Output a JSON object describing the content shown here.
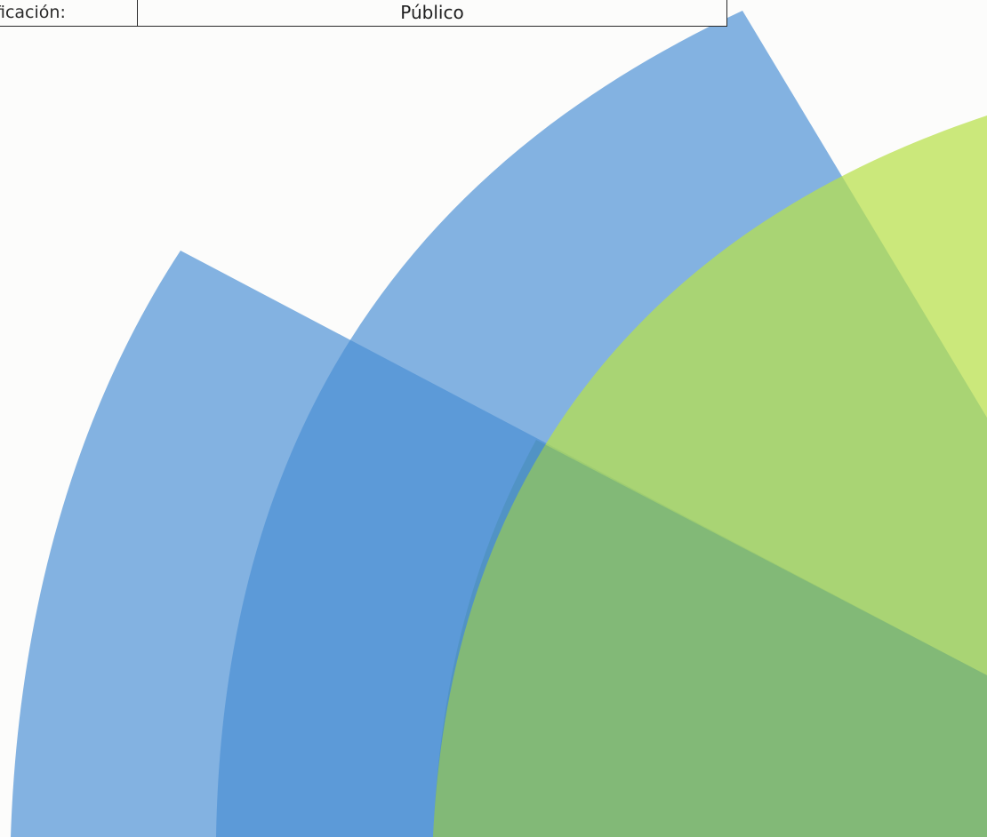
{
  "header": {
    "classification_label": "ficación:",
    "classification_value": "Público"
  },
  "colors": {
    "background": "#fcfcfb",
    "fan_blue": "#4a8fd4",
    "fan_green": "#b8e04a",
    "overlap_teal": "#3f9a9c",
    "border": "#2a2a2a"
  }
}
